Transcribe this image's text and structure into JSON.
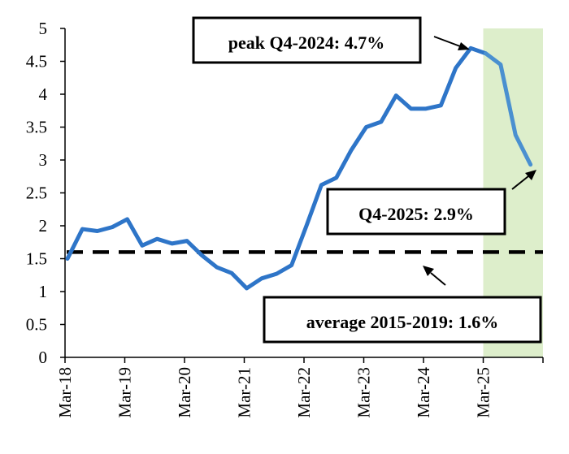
{
  "chart_data": {
    "type": "line",
    "x": [
      "Mar-18",
      "Jun-18",
      "Sep-18",
      "Dec-18",
      "Mar-19",
      "Jun-19",
      "Sep-19",
      "Dec-19",
      "Mar-20",
      "Jun-20",
      "Sep-20",
      "Dec-20",
      "Mar-21",
      "Jun-21",
      "Sep-21",
      "Dec-21",
      "Mar-22",
      "Jun-22",
      "Sep-22",
      "Dec-22",
      "Mar-23",
      "Jun-23",
      "Sep-23",
      "Dec-23",
      "Mar-24",
      "Jun-24",
      "Sep-24",
      "Dec-24",
      "Mar-25",
      "Jun-25",
      "Sep-25",
      "Dec-25"
    ],
    "x_tick_labels": [
      "Mar-18",
      "Mar-19",
      "Mar-20",
      "Mar-21",
      "Mar-22",
      "Mar-23",
      "Mar-24",
      "Mar-25"
    ],
    "series": [
      {
        "values": [
          1.5,
          1.95,
          1.92,
          1.98,
          2.1,
          1.7,
          1.8,
          1.73,
          1.77,
          1.55,
          1.37,
          1.28,
          1.05,
          1.2,
          1.27,
          1.4,
          2.0,
          2.62,
          2.73,
          3.15,
          3.5,
          3.58,
          3.98,
          3.78,
          3.78,
          3.83,
          4.4,
          4.7,
          4.62,
          4.45,
          3.38,
          2.93
        ],
        "color": "#2E75C8",
        "forecast_color": "#4A90D0"
      }
    ],
    "reference_line": {
      "value": 1.6,
      "style": "dashed",
      "color": "#000000"
    },
    "shaded_region": {
      "from": "Mar-25",
      "to": "Dec-25",
      "color": "#DDEECB"
    },
    "ylim": [
      0,
      5
    ],
    "y_ticks": [
      "0",
      "0.5",
      "1",
      "1.5",
      "2",
      "2.5",
      "3",
      "3.5",
      "4",
      "4.5",
      "5"
    ],
    "grid": false,
    "title": "",
    "xlabel": "",
    "ylabel": "",
    "annotations": {
      "peak": "peak Q4-2024: 4.7%",
      "latest": "Q4-2025: 2.9%",
      "average": "average 2015-2019: 1.6%"
    }
  }
}
